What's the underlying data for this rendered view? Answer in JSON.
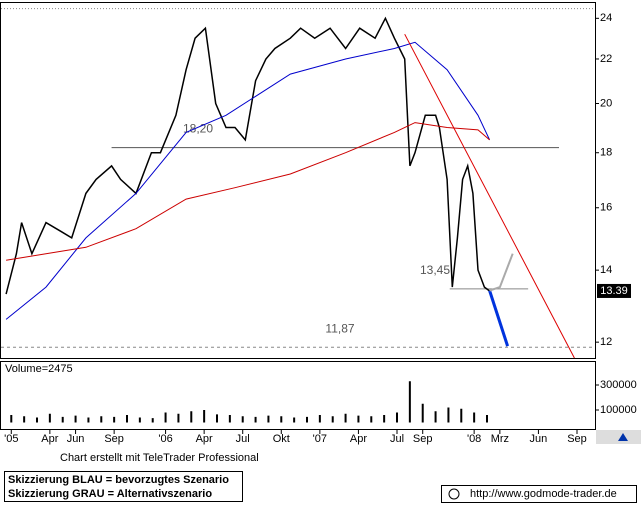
{
  "chart_data": [
    {
      "type": "line",
      "ylog": true,
      "ylim": [
        11.6,
        24.8
      ],
      "yticks": [
        12,
        14,
        16,
        18,
        20,
        22,
        24
      ],
      "xlim": [
        -0.8,
        45.4
      ],
      "xticks": [
        {
          "value": 0,
          "label": "'05"
        },
        {
          "value": 3,
          "label": "Apr"
        },
        {
          "value": 5,
          "label": "Jun"
        },
        {
          "value": 8,
          "label": "Sep"
        },
        {
          "value": 12,
          "label": "'06"
        },
        {
          "value": 15,
          "label": "Apr"
        },
        {
          "value": 18,
          "label": "Jul"
        },
        {
          "value": 21,
          "label": "Okt"
        },
        {
          "value": 24,
          "label": "'07"
        },
        {
          "value": 27,
          "label": "Apr"
        },
        {
          "value": 30,
          "label": "Jul"
        },
        {
          "value": 32,
          "label": "Sep"
        },
        {
          "value": 36,
          "label": "'08"
        },
        {
          "value": 38,
          "label": "Mrz"
        },
        {
          "value": 41,
          "label": "Jun"
        },
        {
          "value": 44,
          "label": "Sep"
        }
      ],
      "series": [
        {
          "color": "#000000",
          "line_width": 1.5,
          "x": [
            -0.4,
            0.4,
            0.8,
            1.6,
            2.7,
            3.9,
            4.7,
            5.8,
            6.6,
            7.8,
            8.5,
            9.7,
            10.9,
            11.6,
            12.8,
            13.6,
            14.3,
            15.1,
            15.9,
            16.7,
            17.4,
            18.2,
            19,
            19.8,
            20.5,
            21.7,
            22.5,
            23.6,
            24.8,
            26,
            27.1,
            28.3,
            29.1,
            29.8,
            30.6,
            31,
            31.4,
            32.2,
            33,
            33.3,
            33.9,
            34.3,
            34.7,
            35.1,
            35.5,
            35.9,
            36.3,
            36.8,
            37.2
          ],
          "values": [
            13.3,
            14.5,
            15.5,
            14.5,
            15.5,
            15.2,
            15,
            16.5,
            17,
            17.5,
            17,
            16.5,
            18,
            18,
            19.5,
            21.5,
            23,
            23.5,
            20,
            19,
            19,
            18.5,
            21,
            22,
            22.5,
            23,
            23.5,
            23,
            23.5,
            22.5,
            23.5,
            23,
            24,
            23,
            22,
            17.5,
            18,
            19.5,
            19.5,
            19,
            17,
            13.5,
            15,
            17,
            17.5,
            16.5,
            14,
            13.5,
            13.39
          ]
        },
        {
          "color": "#0000cc",
          "line_width": 1,
          "x": [
            -0.4,
            2.7,
            5.8,
            9.7,
            13.6,
            16.7,
            21.7,
            26,
            29.8,
            31.4,
            33.9,
            36.3,
            37.2
          ],
          "values": [
            12.6,
            13.5,
            15,
            16.5,
            18.8,
            19.5,
            21.3,
            22,
            22.5,
            22.8,
            21.5,
            19.5,
            18.5
          ]
        },
        {
          "color": "#cc0000",
          "line_width": 1,
          "x": [
            -0.4,
            5.8,
            9.7,
            13.6,
            17.4,
            21.7,
            26,
            29.8,
            31.4,
            33.9,
            36.3,
            37.2
          ],
          "values": [
            14.3,
            14.7,
            15.3,
            16.3,
            16.7,
            17.2,
            18,
            18.8,
            19.2,
            19,
            18.9,
            18.5
          ]
        },
        {
          "color": "#dd0000",
          "line_width": 1,
          "x": [
            30.6,
            43.8
          ],
          "values": [
            23.2,
            11.6
          ]
        },
        {
          "color": "#0033dd",
          "line_width": 3,
          "x": [
            37.2,
            38.6
          ],
          "values": [
            13.4,
            11.9
          ]
        },
        {
          "color": "#aaaaaa",
          "line_width": 2,
          "x": [
            37.2,
            38,
            39
          ],
          "values": [
            13.4,
            13.5,
            14.5
          ]
        }
      ],
      "levels": [
        {
          "value": 18.2,
          "label": "18,20",
          "x": [
            7.8,
            42.6
          ]
        },
        {
          "value": 13.45,
          "label": "13,45",
          "x": [
            34.1,
            40.2
          ]
        },
        {
          "value": 11.87,
          "label": "11,87",
          "x": [
            -0.8,
            45.4
          ]
        },
        {
          "value": 24.5,
          "x": [
            -0.8,
            45.4
          ]
        }
      ],
      "last_price": 13.39
    },
    {
      "type": "bar",
      "title": "Volume=2475",
      "ylim": [
        0,
        484000
      ],
      "yticks": [
        100000,
        300000
      ],
      "color": "#000000",
      "x": [
        0,
        1,
        2,
        3,
        4,
        5,
        6,
        7,
        8,
        9,
        10,
        11,
        12,
        13,
        14,
        15,
        16,
        17,
        18,
        19,
        20,
        21,
        22,
        23,
        24,
        25,
        26,
        27,
        28,
        29,
        30,
        31,
        32,
        33,
        34,
        35,
        36,
        37
      ],
      "values": [
        60000,
        50000,
        40000,
        70000,
        45000,
        55000,
        40000,
        50000,
        45000,
        60000,
        40000,
        35000,
        80000,
        70000,
        90000,
        100000,
        65000,
        60000,
        50000,
        45000,
        55000,
        50000,
        40000,
        45000,
        60000,
        50000,
        70000,
        55000,
        50000,
        60000,
        80000,
        330000,
        150000,
        90000,
        120000,
        110000,
        80000,
        60000
      ]
    }
  ],
  "footer": {
    "credit": "Chart erstellt mit TeleTrader Professional",
    "legend_blue": "Skizzierung BLAU = bevorzugtes Szenario",
    "legend_gray": "Skizzierung GRAU = Alternativszenario",
    "source": "http://www.godmode-trader.de"
  }
}
